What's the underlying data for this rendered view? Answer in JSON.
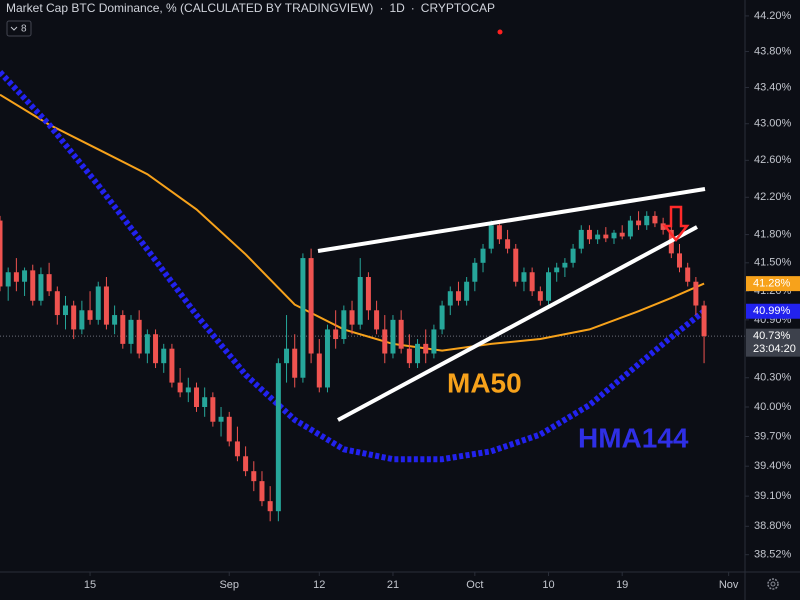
{
  "chart_data": {
    "type": "candlestick",
    "title": "Market Cap BTC Dominance, % (CALCULATED BY TRADINGVIEW)",
    "interval": "1D",
    "source": "CRYPTOCAP",
    "indicator_count": "8",
    "countdown": "23:04:20",
    "log_scale": true,
    "up_color": "#26a69a",
    "down_color": "#ef5350",
    "x": [
      "08-04",
      "08-05",
      "08-06",
      "08-07",
      "08-08",
      "08-09",
      "08-10",
      "08-11",
      "08-12",
      "08-13",
      "08-14",
      "08-15",
      "08-16",
      "08-17",
      "08-18",
      "08-19",
      "08-20",
      "08-21",
      "08-22",
      "08-23",
      "08-24",
      "08-25",
      "08-26",
      "08-27",
      "08-28",
      "08-29",
      "08-30",
      "08-31",
      "09-01",
      "09-02",
      "09-03",
      "09-04",
      "09-05",
      "09-06",
      "09-07",
      "09-08",
      "09-09",
      "09-10",
      "09-11",
      "09-12",
      "09-13",
      "09-14",
      "09-15",
      "09-16",
      "09-17",
      "09-18",
      "09-19",
      "09-20",
      "09-21",
      "09-22",
      "09-23",
      "09-24",
      "09-25",
      "09-26",
      "09-27",
      "09-28",
      "09-29",
      "09-30",
      "10-01",
      "10-02",
      "10-03",
      "10-04",
      "10-05",
      "10-06",
      "10-07",
      "10-08",
      "10-09",
      "10-10",
      "10-11",
      "10-12",
      "10-13",
      "10-14",
      "10-15",
      "10-16",
      "10-17",
      "10-18",
      "10-19",
      "10-20",
      "10-21",
      "10-22",
      "10-23",
      "10-24",
      "10-25",
      "10-26",
      "10-27",
      "10-28",
      "10-29"
    ],
    "open": [
      41.95,
      41.25,
      41.4,
      41.3,
      41.42,
      41.1,
      41.38,
      41.2,
      40.95,
      41.05,
      40.8,
      41.0,
      40.9,
      41.25,
      40.85,
      40.95,
      40.65,
      40.9,
      40.55,
      40.75,
      40.45,
      40.6,
      40.25,
      40.15,
      40.2,
      40.0,
      40.1,
      39.85,
      39.9,
      39.65,
      39.5,
      39.35,
      39.25,
      39.05,
      38.95,
      40.45,
      40.6,
      40.3,
      41.55,
      40.55,
      40.2,
      40.8,
      40.7,
      41.0,
      40.85,
      41.35,
      41.0,
      40.8,
      40.55,
      40.9,
      40.6,
      40.45,
      40.65,
      40.55,
      40.8,
      41.05,
      41.2,
      41.1,
      41.3,
      41.5,
      41.65,
      41.9,
      41.75,
      41.65,
      41.3,
      41.4,
      41.2,
      41.1,
      41.4,
      41.45,
      41.5,
      41.65,
      41.85,
      41.75,
      41.8,
      41.76,
      41.82,
      41.78,
      41.95,
      41.9,
      42.0,
      41.92,
      41.85,
      41.6,
      41.45,
      41.3,
      41.05
    ],
    "high": [
      42.0,
      41.45,
      41.55,
      41.45,
      41.48,
      41.45,
      41.5,
      41.25,
      41.15,
      41.1,
      41.1,
      41.2,
      41.3,
      41.35,
      41.05,
      41.0,
      40.95,
      41.0,
      40.8,
      40.8,
      40.65,
      40.65,
      40.4,
      40.3,
      40.25,
      40.2,
      40.15,
      40.0,
      39.95,
      39.8,
      39.6,
      39.45,
      39.35,
      39.2,
      40.5,
      40.95,
      40.75,
      41.6,
      41.65,
      40.7,
      40.85,
      41.0,
      41.05,
      41.1,
      41.55,
      41.4,
      41.1,
      40.95,
      40.95,
      41.0,
      40.75,
      40.7,
      40.8,
      40.85,
      41.1,
      41.25,
      41.3,
      41.35,
      41.55,
      41.7,
      41.95,
      41.95,
      41.85,
      41.7,
      41.45,
      41.45,
      41.25,
      41.45,
      41.5,
      41.55,
      41.7,
      41.9,
      41.9,
      41.85,
      41.88,
      41.85,
      41.9,
      42.0,
      42.05,
      42.05,
      42.05,
      41.98,
      41.9,
      41.7,
      41.5,
      41.35,
      41.1
    ],
    "low": [
      41.2,
      41.1,
      41.2,
      41.15,
      41.05,
      41.05,
      41.15,
      40.85,
      40.8,
      40.7,
      40.75,
      40.85,
      40.85,
      40.8,
      40.75,
      40.6,
      40.55,
      40.5,
      40.45,
      40.4,
      40.35,
      40.2,
      40.1,
      40.05,
      39.95,
      39.9,
      39.8,
      39.7,
      39.6,
      39.45,
      39.3,
      39.15,
      39.0,
      38.85,
      38.85,
      40.25,
      40.2,
      40.25,
      40.45,
      40.15,
      40.15,
      40.6,
      40.65,
      40.75,
      40.8,
      40.9,
      40.75,
      40.45,
      40.5,
      40.55,
      40.4,
      40.4,
      40.45,
      40.5,
      40.75,
      40.95,
      41.05,
      41.05,
      41.2,
      41.4,
      41.6,
      41.7,
      41.6,
      41.25,
      41.2,
      41.15,
      41.05,
      41.05,
      41.3,
      41.35,
      41.45,
      41.6,
      41.7,
      41.7,
      41.72,
      41.7,
      41.75,
      41.75,
      41.85,
      41.85,
      41.88,
      41.8,
      41.55,
      41.4,
      41.25,
      40.95,
      40.45
    ],
    "close": [
      41.25,
      41.4,
      41.3,
      41.42,
      41.1,
      41.38,
      41.2,
      40.95,
      41.05,
      40.8,
      41.0,
      40.9,
      41.25,
      40.85,
      40.95,
      40.65,
      40.9,
      40.55,
      40.75,
      40.45,
      40.6,
      40.25,
      40.15,
      40.2,
      40.0,
      40.1,
      39.85,
      39.9,
      39.65,
      39.5,
      39.35,
      39.25,
      39.05,
      38.95,
      40.45,
      40.6,
      40.3,
      41.55,
      40.55,
      40.2,
      40.8,
      40.7,
      41.0,
      40.85,
      41.35,
      41.0,
      40.8,
      40.55,
      40.9,
      40.6,
      40.45,
      40.65,
      40.55,
      40.8,
      41.05,
      41.2,
      41.1,
      41.3,
      41.5,
      41.65,
      41.9,
      41.75,
      41.65,
      41.3,
      41.4,
      41.2,
      41.1,
      41.4,
      41.45,
      41.5,
      41.65,
      41.85,
      41.75,
      41.8,
      41.76,
      41.82,
      41.78,
      41.95,
      41.9,
      42.0,
      41.92,
      41.85,
      41.6,
      41.45,
      41.3,
      41.05,
      40.73
    ],
    "close_labels": [
      null,
      null,
      null,
      null,
      null,
      null,
      null,
      null,
      null,
      null,
      null,
      null,
      null,
      null,
      null,
      null,
      null,
      null,
      null,
      null,
      null,
      null,
      null,
      null,
      null,
      null,
      null,
      null,
      null,
      null,
      null,
      null,
      null,
      null,
      null,
      null,
      null,
      null,
      null,
      null,
      null,
      null,
      null,
      null,
      null,
      null,
      null,
      null,
      null,
      null,
      null,
      null,
      null,
      null,
      null,
      null,
      null,
      null,
      null,
      null,
      null,
      null,
      null,
      null,
      null,
      null,
      null,
      null,
      null,
      null,
      null,
      null,
      null,
      null,
      null,
      null,
      null,
      null,
      null,
      null,
      null,
      null,
      null,
      null,
      null,
      null,
      "40.73%"
    ],
    "series": [
      {
        "name": "MA50",
        "style": "line",
        "color": "#f7a21b",
        "x": [
          "08-04",
          "08-10",
          "08-16",
          "08-22",
          "08-28",
          "09-03",
          "09-09",
          "09-15",
          "09-21",
          "09-27",
          "10-03",
          "10-09",
          "10-15",
          "10-21",
          "10-25",
          "10-29"
        ],
        "values": [
          43.32,
          42.99,
          42.72,
          42.45,
          42.07,
          41.59,
          41.06,
          40.8,
          40.65,
          40.58,
          40.65,
          40.7,
          40.8,
          40.99,
          41.13,
          41.28
        ],
        "value_labels": [
          null,
          null,
          null,
          null,
          null,
          null,
          null,
          null,
          null,
          null,
          null,
          null,
          null,
          null,
          null,
          "41.28%"
        ]
      },
      {
        "name": "HMA144",
        "style": "cross",
        "color": "#2222ee",
        "x": [
          "08-04",
          "08-10",
          "08-16",
          "08-22",
          "08-28",
          "09-03",
          "09-09",
          "09-15",
          "09-21",
          "09-27",
          "10-03",
          "10-09",
          "10-15",
          "10-21",
          "10-25",
          "10-29"
        ],
        "values": [
          43.57,
          42.99,
          42.33,
          41.64,
          40.95,
          40.33,
          39.87,
          39.57,
          39.47,
          39.47,
          39.55,
          39.72,
          40.02,
          40.44,
          40.72,
          40.99
        ],
        "value_labels": [
          null,
          null,
          null,
          null,
          null,
          null,
          null,
          null,
          null,
          null,
          null,
          null,
          null,
          null,
          null,
          "40.99%"
        ]
      }
    ],
    "xlim": [
      "08-04",
      "11-03"
    ],
    "xticks": [
      {
        "value": "08-15",
        "label": "15"
      },
      {
        "value": "09-01",
        "label": "Sep"
      },
      {
        "value": "09-12",
        "label": "12"
      },
      {
        "value": "09-21",
        "label": "21"
      },
      {
        "value": "10-01",
        "label": "Oct"
      },
      {
        "value": "10-10",
        "label": "10"
      },
      {
        "value": "10-19",
        "label": "19"
      },
      {
        "value": "11-01",
        "label": "Nov"
      }
    ],
    "ylim": [
      38.35,
      44.38
    ],
    "yticks": [
      {
        "value": 44.2,
        "label": "44.20%"
      },
      {
        "value": 43.8,
        "label": "43.80%"
      },
      {
        "value": 43.4,
        "label": "43.40%"
      },
      {
        "value": 43.0,
        "label": "43.00%"
      },
      {
        "value": 42.6,
        "label": "42.60%"
      },
      {
        "value": 42.2,
        "label": "42.20%"
      },
      {
        "value": 41.8,
        "label": "41.80%"
      },
      {
        "value": 41.5,
        "label": "41.50%"
      },
      {
        "value": 41.2,
        "label": "41.20%"
      },
      {
        "value": 40.9,
        "label": "40.90%"
      },
      {
        "value": 40.3,
        "label": "40.30%"
      },
      {
        "value": 40.0,
        "label": "40.00%"
      },
      {
        "value": 39.7,
        "label": "39.70%"
      },
      {
        "value": 39.4,
        "label": "39.40%"
      },
      {
        "value": 39.1,
        "label": "39.10%"
      },
      {
        "value": 38.8,
        "label": "38.80%"
      },
      {
        "value": 38.52,
        "label": "38.52%"
      }
    ]
  }
}
